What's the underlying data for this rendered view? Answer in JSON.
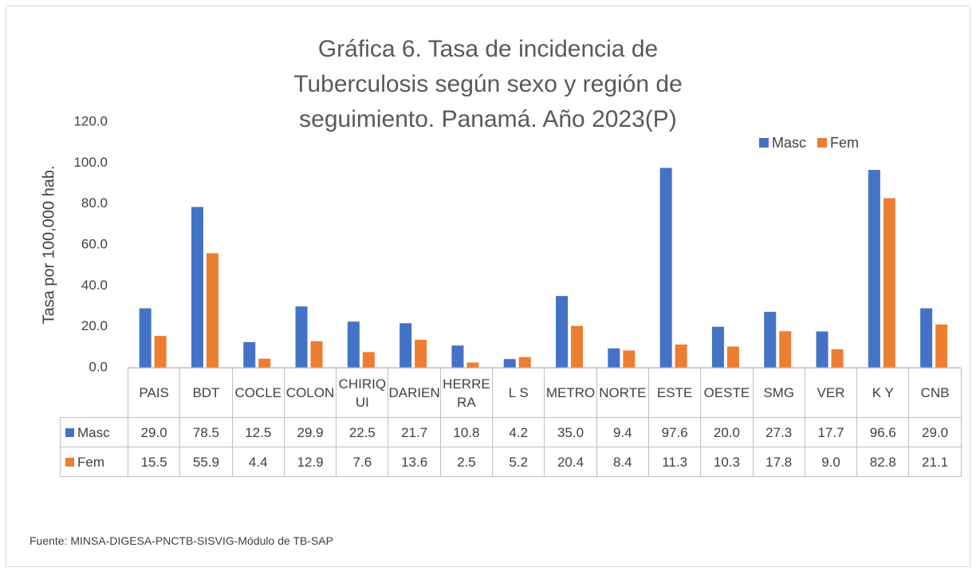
{
  "chart_data": {
    "type": "bar",
    "title": "Gráfica 6. Tasa de incidencia de Tuberculosis según sexo y región de seguimiento. Panamá. Año 2023(P)",
    "ylabel": "Tasa por 100,000 hab.",
    "categories": [
      "PAIS",
      "BDT",
      "COCLE",
      "COLON",
      "CHIRIQUI",
      "DARIEN",
      "HERRERA",
      "L S",
      "METRO",
      "NORTE",
      "ESTE",
      "OESTE",
      "SMG",
      "VER",
      "K Y",
      "CNB"
    ],
    "series": [
      {
        "name": "Masc",
        "color": "#4472c4",
        "values": [
          29,
          78.5,
          12.5,
          29.9,
          22.5,
          21.7,
          10.8,
          4.2,
          35,
          9.4,
          97.6,
          20,
          27.3,
          17.7,
          96.6,
          29
        ],
        "value_labels": [
          "29.0",
          "78.5",
          "12.5",
          "29.9",
          "22.5",
          "21.7",
          "10.8",
          "4.2",
          "35.0",
          "9.4",
          "97.6",
          "20.0",
          "27.3",
          "17.7",
          "96.6",
          "29.0"
        ]
      },
      {
        "name": "Fem",
        "color": "#ed7d31",
        "values": [
          15.5,
          55.9,
          4.4,
          12.9,
          7.6,
          13.6,
          2.5,
          5.2,
          20.4,
          8.4,
          11.3,
          10.3,
          17.8,
          9,
          82.8,
          21.1
        ],
        "value_labels": [
          "15.5",
          "55.9",
          "4.4",
          "12.9",
          "7.6",
          "13.6",
          "2.5",
          "5.2",
          "20.4",
          "8.4",
          "11.3",
          "10.3",
          "17.8",
          "9.0",
          "82.8",
          "21.1"
        ]
      }
    ],
    "ylim": [
      0,
      120
    ],
    "yticks": [
      {
        "value": 0,
        "label": "0.0"
      },
      {
        "value": 20,
        "label": "20.0"
      },
      {
        "value": 40,
        "label": "40.0"
      },
      {
        "value": 60,
        "label": "60.0"
      },
      {
        "value": 80,
        "label": "80.0"
      },
      {
        "value": 100,
        "label": "100.0"
      },
      {
        "value": 120,
        "label": "120.0"
      }
    ],
    "grid": false,
    "legend": "top-right",
    "source": "Fuente: MINSA-DIGESA-PNCTB-SISVIG-Módulo de TB-SAP"
  }
}
